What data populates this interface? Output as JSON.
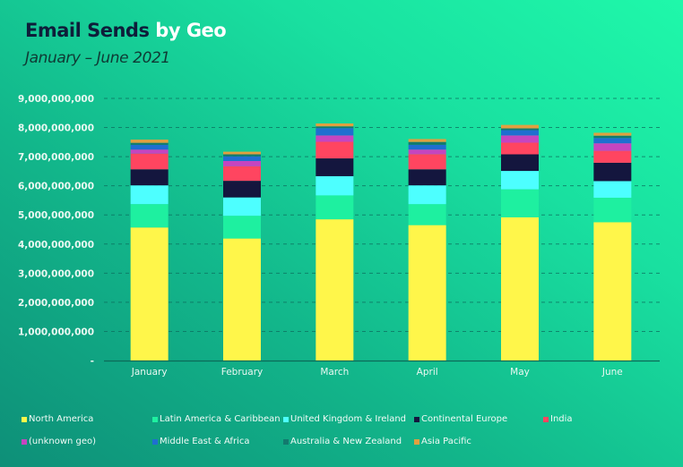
{
  "header": {
    "title_main": "Email Sends",
    "title_accent": "by Geo",
    "subtitle": "January – June 2021"
  },
  "chart_data": {
    "type": "bar",
    "stacked": true,
    "title": "Email Sends by Geo",
    "subtitle": "January – June 2021",
    "xlabel": "",
    "ylabel": "",
    "categories": [
      "January",
      "February",
      "March",
      "April",
      "May",
      "June"
    ],
    "ylim": [
      0,
      9000000000
    ],
    "yticks": [
      0,
      1000000000,
      2000000000,
      3000000000,
      4000000000,
      5000000000,
      6000000000,
      7000000000,
      8000000000,
      9000000000
    ],
    "ytick_labels": [
      "-",
      "1,000,000,000",
      "2,000,000,000",
      "3,000,000,000",
      "4,000,000,000",
      "5,000,000,000",
      "6,000,000,000",
      "7,000,000,000",
      "8,000,000,000",
      "9,000,000,000"
    ],
    "grid": true,
    "legend_position": "bottom",
    "series": [
      {
        "name": "North America",
        "color": "#fff64a",
        "values": [
          4570000000,
          4190000000,
          4850000000,
          4650000000,
          4920000000,
          4750000000
        ]
      },
      {
        "name": "Latin America & Caribbean",
        "color": "#1ef0a0",
        "values": [
          800000000,
          780000000,
          820000000,
          720000000,
          960000000,
          840000000
        ]
      },
      {
        "name": "United Kingdom & Ireland",
        "color": "#4dffff",
        "values": [
          645000000,
          630000000,
          660000000,
          645000000,
          630000000,
          570000000
        ]
      },
      {
        "name": "Continental Europe",
        "color": "#14163e",
        "values": [
          550000000,
          570000000,
          610000000,
          550000000,
          570000000,
          630000000
        ]
      },
      {
        "name": "India",
        "color": "#ff4560",
        "values": [
          540000000,
          500000000,
          570000000,
          520000000,
          400000000,
          410000000
        ]
      },
      {
        "name": "(unknown geo)",
        "color": "#c545c0",
        "values": [
          140000000,
          180000000,
          220000000,
          160000000,
          250000000,
          260000000
        ]
      },
      {
        "name": "Middle East & Africa",
        "color": "#1f6fd0",
        "values": [
          160000000,
          160000000,
          250000000,
          160000000,
          180000000,
          180000000
        ]
      },
      {
        "name": "Australia & New Zealand",
        "color": "#127a6e",
        "values": [
          70000000,
          70000000,
          60000000,
          100000000,
          60000000,
          80000000
        ]
      },
      {
        "name": "Asia Pacific",
        "color": "#e0a040",
        "values": [
          110000000,
          90000000,
          100000000,
          100000000,
          120000000,
          100000000
        ]
      }
    ]
  }
}
